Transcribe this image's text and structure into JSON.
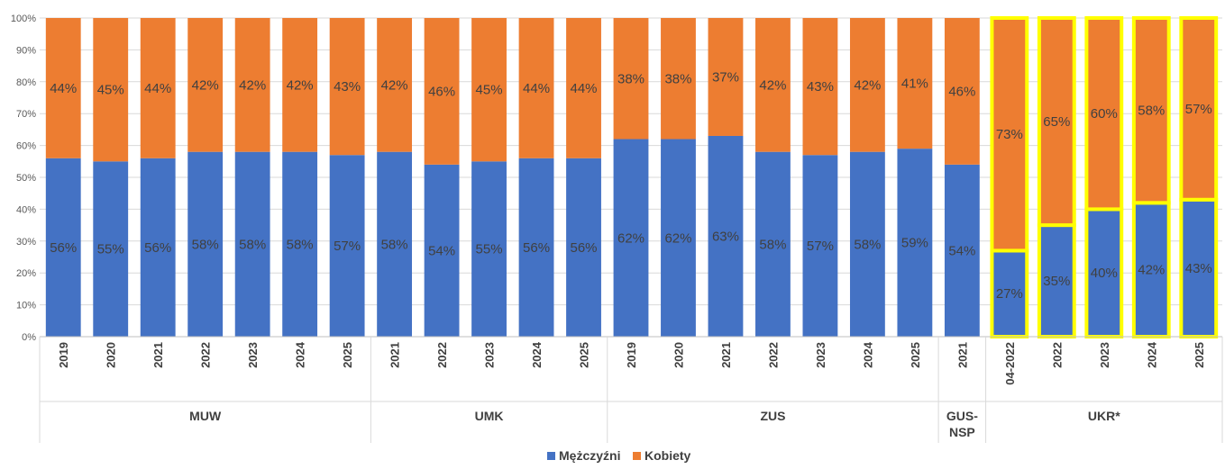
{
  "chart_data": {
    "type": "bar",
    "stacked": true,
    "percent": true,
    "ylim": [
      0,
      100
    ],
    "yticks": [
      "0%",
      "10%",
      "20%",
      "30%",
      "40%",
      "50%",
      "60%",
      "70%",
      "80%",
      "90%",
      "100%"
    ],
    "grid": true,
    "legend_position": "bottom",
    "colors": {
      "men": "#4472C4",
      "women": "#ED7D31",
      "highlight": "#FFFF00"
    },
    "groups": [
      {
        "label": "MUW",
        "categories": [
          "2019",
          "2020",
          "2021",
          "2022",
          "2023",
          "2024",
          "2025"
        ]
      },
      {
        "label": "UMK",
        "categories": [
          "2021",
          "2022",
          "2023",
          "2024",
          "2025"
        ]
      },
      {
        "label": "ZUS",
        "categories": [
          "2019",
          "2020",
          "2021",
          "2022",
          "2023",
          "2024",
          "2025"
        ]
      },
      {
        "label": "GUS-\nNSP",
        "categories": [
          "2021"
        ]
      },
      {
        "label": "UKR*",
        "categories": [
          "04-2022",
          "2022",
          "2023",
          "2024",
          "2025"
        ],
        "highlighted": true
      }
    ],
    "series": [
      {
        "name": "Mężczyźni",
        "values": [
          56,
          55,
          56,
          58,
          58,
          58,
          57,
          58,
          54,
          55,
          56,
          56,
          62,
          62,
          63,
          58,
          57,
          58,
          59,
          54,
          27,
          35,
          40,
          42,
          43
        ],
        "labels": [
          "56%",
          "55%",
          "56%",
          "58%",
          "58%",
          "58%",
          "57%",
          "58%",
          "54%",
          "55%",
          "56%",
          "56%",
          "62%",
          "62%",
          "63%",
          "58%",
          "57%",
          "58%",
          "59%",
          "54%",
          "27%",
          "35%",
          "40%",
          "42%",
          "43%"
        ]
      },
      {
        "name": "Kobiety",
        "values": [
          44,
          45,
          44,
          42,
          42,
          42,
          43,
          42,
          46,
          45,
          44,
          44,
          38,
          38,
          37,
          42,
          43,
          42,
          41,
          46,
          73,
          65,
          60,
          58,
          57
        ],
        "labels": [
          "44%",
          "45%",
          "44%",
          "42%",
          "42%",
          "42%",
          "43%",
          "42%",
          "46%",
          "45%",
          "44%",
          "44%",
          "38%",
          "38%",
          "37%",
          "42%",
          "43%",
          "42%",
          "41%",
          "46%",
          "73%",
          "65%",
          "60%",
          "58%",
          "57%"
        ]
      }
    ]
  }
}
